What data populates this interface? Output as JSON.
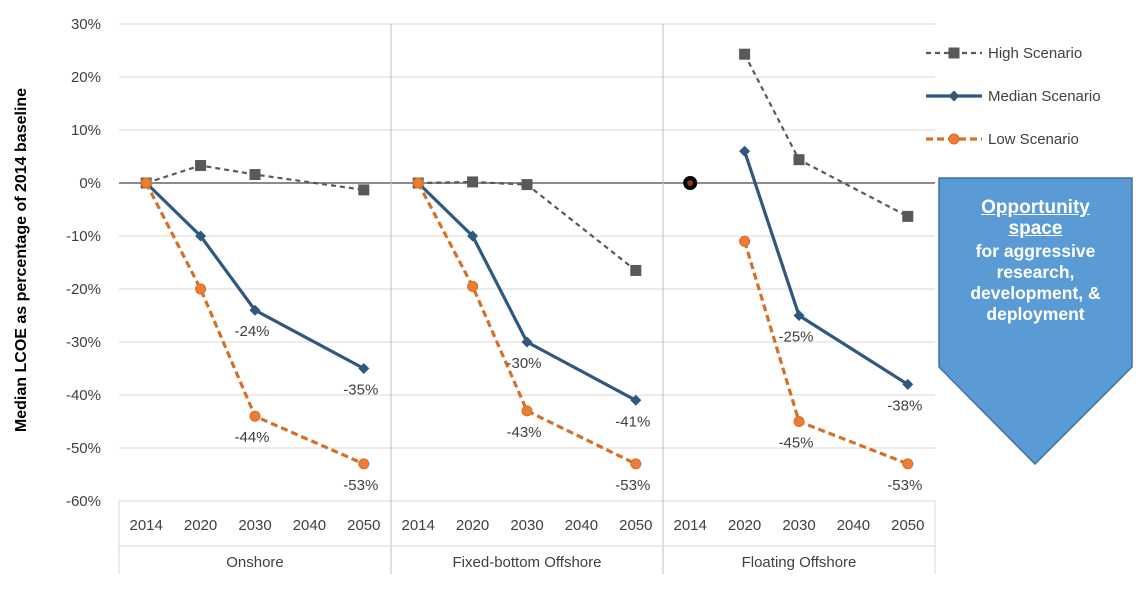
{
  "chart_data": {
    "type": "line",
    "ylabel": "Median LCOE as percentage of 2014 baseline",
    "ylim": [
      -60,
      30
    ],
    "y_ticks": [
      "30%",
      "20%",
      "10%",
      "0%",
      "-10%",
      "-20%",
      "-30%",
      "-40%",
      "-50%",
      "-60%"
    ],
    "grid": true,
    "legend_position": "top-right",
    "legend": [
      {
        "name": "High Scenario",
        "color": "#595959",
        "marker": "square",
        "dash": true
      },
      {
        "name": "Median Scenario",
        "color": "#2f5880",
        "marker": "diamond",
        "dash": false
      },
      {
        "name": "Low Scenario",
        "color": "#d4702a",
        "marker": "circle",
        "dash": true
      }
    ],
    "panels": [
      {
        "name": "Onshore",
        "x": [
          "2014",
          "2020",
          "2030",
          "2040",
          "2050"
        ],
        "series": [
          {
            "name": "High Scenario",
            "points": [
              [
                "2014",
                0
              ],
              [
                "2020",
                3.3
              ],
              [
                "2030",
                1.6
              ],
              [
                "2050",
                -1.3
              ]
            ]
          },
          {
            "name": "Median Scenario",
            "points": [
              [
                "2014",
                0
              ],
              [
                "2020",
                -10
              ],
              [
                "2030",
                -24
              ],
              [
                "2050",
                -35
              ]
            ]
          },
          {
            "name": "Low Scenario",
            "points": [
              [
                "2014",
                0
              ],
              [
                "2020",
                -20
              ],
              [
                "2030",
                -44
              ],
              [
                "2050",
                -53
              ]
            ]
          }
        ],
        "labels": [
          {
            "text": "-24%",
            "x": "2030",
            "y": -24,
            "pos": "below"
          },
          {
            "text": "-35%",
            "x": "2050",
            "y": -35,
            "pos": "below"
          },
          {
            "text": "-44%",
            "x": "2030",
            "y": -44,
            "pos": "below"
          },
          {
            "text": "-53%",
            "x": "2050",
            "y": -53,
            "pos": "below"
          }
        ]
      },
      {
        "name": "Fixed-bottom Offshore",
        "x": [
          "2014",
          "2020",
          "2030",
          "2040",
          "2050"
        ],
        "series": [
          {
            "name": "High Scenario",
            "points": [
              [
                "2014",
                0
              ],
              [
                "2020",
                0.2
              ],
              [
                "2030",
                -0.3
              ],
              [
                "2050",
                -16.5
              ]
            ]
          },
          {
            "name": "Median Scenario",
            "points": [
              [
                "2014",
                0
              ],
              [
                "2020",
                -10
              ],
              [
                "2030",
                -30
              ],
              [
                "2050",
                -41
              ]
            ]
          },
          {
            "name": "Low Scenario",
            "points": [
              [
                "2014",
                0
              ],
              [
                "2020",
                -19.5
              ],
              [
                "2030",
                -43
              ],
              [
                "2050",
                -53
              ]
            ]
          }
        ],
        "labels": [
          {
            "text": "-30%",
            "x": "2030",
            "y": -30,
            "pos": "below"
          },
          {
            "text": "-41%",
            "x": "2050",
            "y": -41,
            "pos": "below"
          },
          {
            "text": "-43%",
            "x": "2030",
            "y": -43,
            "pos": "below"
          },
          {
            "text": "-53%",
            "x": "2050",
            "y": -53,
            "pos": "below"
          }
        ]
      },
      {
        "name": "Floating Offshore",
        "x": [
          "2014",
          "2020",
          "2030",
          "2040",
          "2050"
        ],
        "baseline_point": {
          "x": "2014",
          "y": 0
        },
        "series": [
          {
            "name": "High Scenario",
            "points": [
              [
                "2020",
                24.3
              ],
              [
                "2030",
                4.4
              ],
              [
                "2050",
                -6.3
              ]
            ]
          },
          {
            "name": "Median Scenario",
            "points": [
              [
                "2020",
                6
              ],
              [
                "2030",
                -25
              ],
              [
                "2050",
                -38
              ]
            ]
          },
          {
            "name": "Low Scenario",
            "points": [
              [
                "2020",
                -11
              ],
              [
                "2030",
                -45
              ],
              [
                "2050",
                -53
              ]
            ]
          }
        ],
        "labels": [
          {
            "text": "-25%",
            "x": "2030",
            "y": -25,
            "pos": "below"
          },
          {
            "text": "-38%",
            "x": "2050",
            "y": -38,
            "pos": "below"
          },
          {
            "text": "-45%",
            "x": "2030",
            "y": -45,
            "pos": "below"
          },
          {
            "text": "-53%",
            "x": "2050",
            "y": -53,
            "pos": "below"
          }
        ]
      }
    ]
  },
  "callout": {
    "title": "Opportunity space",
    "title_line1": "Opportunity",
    "title_line2": "space",
    "body": "for aggressive research, development, & deployment",
    "line1": "for aggressive",
    "line2": "research,",
    "line3": "development,  &",
    "line4": "deployment",
    "color": "#5b9bd5"
  }
}
